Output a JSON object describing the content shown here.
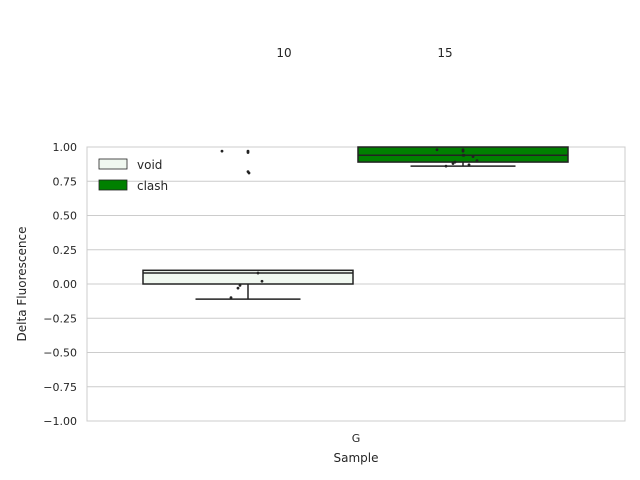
{
  "chart_data": {
    "type": "box",
    "title": "",
    "xlabel": "Sample",
    "ylabel": "Delta Fluorescence",
    "ylim": [
      -1.0,
      1.0
    ],
    "yticks": [
      "1.00",
      "0.75",
      "0.50",
      "0.25",
      "0.00",
      "−0.25",
      "−0.50",
      "−0.75",
      "−1.00"
    ],
    "ytick_values": [
      1.0,
      0.75,
      0.5,
      0.25,
      0.0,
      -0.25,
      -0.5,
      -0.75,
      -1.0
    ],
    "categories": [
      "G"
    ],
    "grid": true,
    "legend_position": "upper-left",
    "top_annotations": [
      "10",
      "15"
    ],
    "series": [
      {
        "name": "void",
        "color": "#f0f8f0",
        "box": {
          "q1": 0.0,
          "median": 0.08,
          "q3": 0.1,
          "whisker_low": -0.11,
          "whisker_high": 0.1
        },
        "points": [
          0.97,
          0.97,
          0.96,
          0.82,
          0.81,
          0.08,
          0.02,
          -0.01,
          -0.03,
          -0.1
        ]
      },
      {
        "name": "clash",
        "color": "#008000",
        "box": {
          "q1": 0.89,
          "median": 0.94,
          "q3": 1.0,
          "whisker_low": 0.86,
          "whisker_high": 1.0
        },
        "points": [
          0.98,
          0.98,
          0.97,
          0.94,
          0.94,
          0.93,
          0.9,
          0.89,
          0.88,
          0.86,
          0.87
        ]
      }
    ]
  }
}
